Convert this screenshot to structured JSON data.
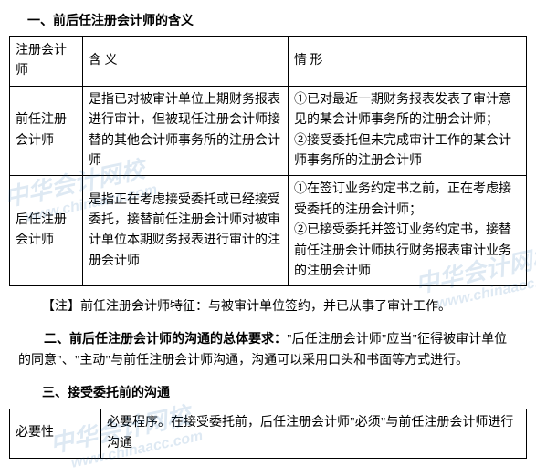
{
  "heading1": "一、前后任注册会计师的含义",
  "table1": {
    "columns": [
      "注册会计师",
      "含 义",
      "情 形"
    ],
    "rows": [
      {
        "c1": "前任注册会计师",
        "c2": "是指已对被审计单位上期财务报表进行审计，但被现任注册会计师接替的其他会计师事务所的注册会计师",
        "c3": "①已对最近一期财务报表发表了审计意见的某会计师事务所的注册会计师；\n②接受委托但未完成审计工作的某会计师事务所的注册会计师"
      },
      {
        "c1": "后任注册会计师",
        "c2": "是指正在考虑接受委托或已经接受委托，接替前任注册会计师对被审计单位本期财务报表进行审计的注册会计师",
        "c3": "①在签订业务约定书之前，正在考虑接受委托的注册会计师；\n②已接受委托并签订业务约定书，接替前任注册会计师执行财务报表审计业务的注册会计师"
      }
    ]
  },
  "note": "【注】前任注册会计师特征：与被审计单位签约，并已从事了审计工作。",
  "heading2_prefix": "二、前后任注册会计师的沟通的总体要求：",
  "para2_rest": "\"后任注册会计师\"应当\"征得被审计单位的同意\"、\"主动\"与前任注册会计师沟通，沟通可以采用口头和书面等方式进行。",
  "heading3": "三、接受委托前的沟通",
  "table2": {
    "rows": [
      {
        "c1": "必要性",
        "c2": "必要程序。在接受委托前，后任注册会计师\"必须\"与前任注册会计师进行沟通"
      }
    ]
  },
  "watermark": {
    "cn": "中华会计网校",
    "en": "www.chinaacc.com"
  }
}
